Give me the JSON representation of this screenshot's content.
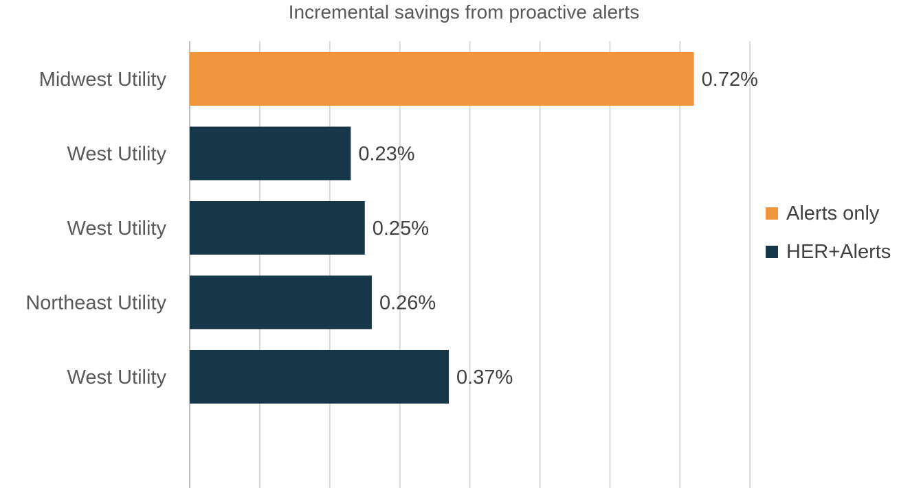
{
  "chart_data": {
    "type": "bar",
    "orientation": "horizontal",
    "title": "Incremental savings from proactive alerts",
    "categories": [
      "Midwest Utility",
      "West Utility",
      "West Utility",
      "Northeast Utility",
      "West Utility"
    ],
    "values": [
      0.72,
      0.23,
      0.25,
      0.26,
      0.37
    ],
    "data_labels": [
      "0.72%",
      "0.23%",
      "0.25%",
      "0.26%",
      "0.37%"
    ],
    "bar_series": [
      "Alerts only",
      "HER+Alerts",
      "HER+Alerts",
      "HER+Alerts",
      "HER+Alerts"
    ],
    "series": [
      {
        "name": "Alerts only",
        "color": "#F0953C"
      },
      {
        "name": "HER+Alerts",
        "color": "#163748"
      }
    ],
    "xlim": [
      0,
      0.8
    ],
    "xgrid_step": 0.1,
    "grid": true,
    "legend_position": "right"
  }
}
